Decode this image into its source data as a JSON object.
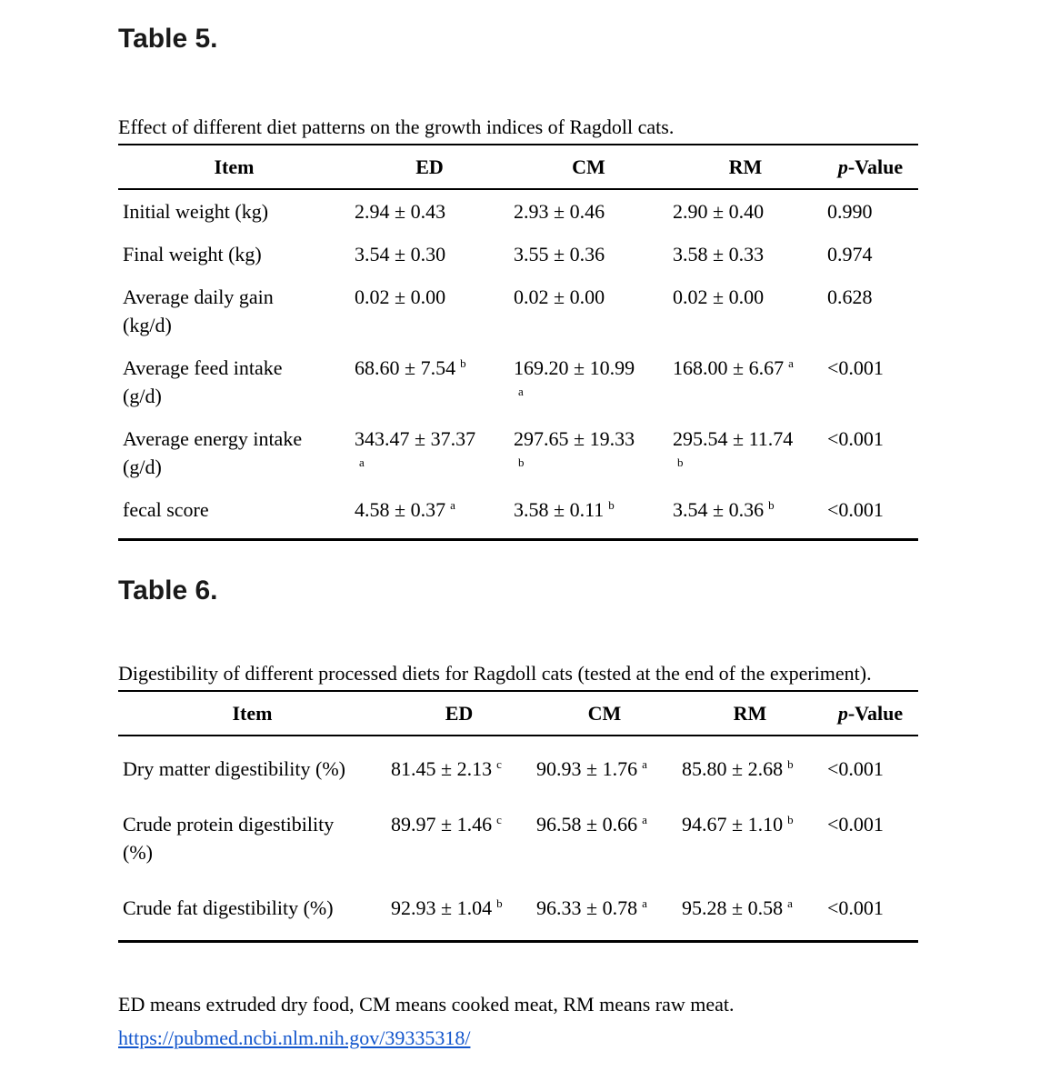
{
  "tables": [
    {
      "title": "Table 5.",
      "caption": "Effect of different diet patterns on the growth indices of Ragdoll cats.",
      "columns": [
        {
          "label": "Item"
        },
        {
          "label": "ED"
        },
        {
          "label": "CM"
        },
        {
          "label": "RM"
        },
        {
          "label": "p-Value",
          "italic_first": true
        }
      ],
      "rows": [
        {
          "item": [
            "Initial weight (kg)"
          ],
          "cells": [
            {
              "v": "2.94 ± 0.43"
            },
            {
              "v": "2.93 ± 0.46"
            },
            {
              "v": "2.90 ± 0.40"
            },
            {
              "v": "0.990"
            }
          ]
        },
        {
          "item": [
            "Final weight (kg)"
          ],
          "cells": [
            {
              "v": "3.54 ± 0.30"
            },
            {
              "v": "3.55 ± 0.36"
            },
            {
              "v": "3.58 ± 0.33"
            },
            {
              "v": "0.974"
            }
          ]
        },
        {
          "item": [
            "Average daily gain",
            "(kg/d)"
          ],
          "cells": [
            {
              "v": "0.02 ± 0.00"
            },
            {
              "v": "0.02 ± 0.00"
            },
            {
              "v": "0.02 ± 0.00"
            },
            {
              "v": "0.628"
            }
          ]
        },
        {
          "item": [
            "Average feed intake",
            "(g/d)"
          ],
          "cells": [
            {
              "v": "68.60 ± 7.54",
              "sup": "b"
            },
            {
              "v": "169.20 ± 10.99",
              "sup": "a",
              "sup_newline": true
            },
            {
              "v": "168.00 ± 6.67",
              "sup": "a"
            },
            {
              "v": "<0.001"
            }
          ]
        },
        {
          "item": [
            "Average energy intake",
            "(g/d)"
          ],
          "cells": [
            {
              "v": "343.47 ± 37.37",
              "sup": "a",
              "sup_newline": true
            },
            {
              "v": "297.65 ± 19.33",
              "sup": "b",
              "sup_newline": true
            },
            {
              "v": "295.54 ± 11.74",
              "sup": "b",
              "sup_newline": true
            },
            {
              "v": "<0.001"
            }
          ]
        },
        {
          "item": [
            "fecal score"
          ],
          "cells": [
            {
              "v": "4.58 ± 0.37",
              "sup": "a"
            },
            {
              "v": "3.58 ± 0.11",
              "sup": "b"
            },
            {
              "v": "3.54 ± 0.36",
              "sup": "b"
            },
            {
              "v": "<0.001"
            }
          ]
        }
      ]
    },
    {
      "title": "Table 6.",
      "caption": "Digestibility of different processed diets for Ragdoll cats (tested at the end of the experiment).",
      "columns": [
        {
          "label": "Item"
        },
        {
          "label": "ED"
        },
        {
          "label": "CM"
        },
        {
          "label": "RM"
        },
        {
          "label": "p-Value",
          "italic_first": true
        }
      ],
      "rows": [
        {
          "item": [
            "Dry matter digestibility (%)"
          ],
          "cells": [
            {
              "v": "81.45 ± 2.13",
              "sup": "c"
            },
            {
              "v": "90.93 ± 1.76",
              "sup": "a"
            },
            {
              "v": "85.80 ± 2.68",
              "sup": "b"
            },
            {
              "v": "<0.001"
            }
          ]
        },
        {
          "item": [
            "Crude protein digestibility",
            "(%)"
          ],
          "cells": [
            {
              "v": "89.97 ± 1.46",
              "sup": "c"
            },
            {
              "v": "96.58 ± 0.66",
              "sup": "a"
            },
            {
              "v": "94.67 ± 1.10",
              "sup": "b"
            },
            {
              "v": "<0.001"
            }
          ]
        },
        {
          "item": [
            "Crude fat digestibility (%)"
          ],
          "cells": [
            {
              "v": "92.93 ± 1.04",
              "sup": "b"
            },
            {
              "v": "96.33 ± 0.78",
              "sup": "a"
            },
            {
              "v": "95.28 ± 0.58",
              "sup": "a"
            },
            {
              "v": "<0.001"
            }
          ]
        }
      ]
    }
  ],
  "footer": {
    "note": "ED means extruded dry food, CM means cooked meat, RM means raw meat.",
    "link": "https://pubmed.ncbi.nlm.nih.gov/39335318/"
  },
  "colors": {
    "link": "#1155CC",
    "text": "#000000",
    "heading": "#1a1a1a",
    "rule": "#000000"
  }
}
